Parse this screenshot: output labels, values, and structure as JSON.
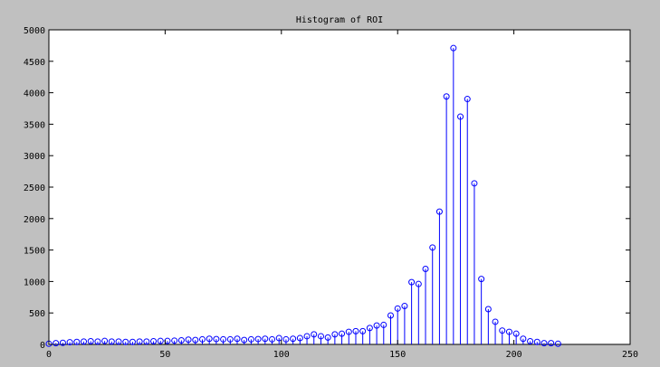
{
  "chart_data": {
    "type": "stem",
    "title": "Histogram of ROI",
    "xlabel": "",
    "ylabel": "",
    "xlim": [
      0,
      250
    ],
    "ylim": [
      0,
      5000
    ],
    "xticks": [
      0,
      50,
      100,
      150,
      200,
      250
    ],
    "yticks": [
      0,
      500,
      1000,
      1500,
      2000,
      2500,
      3000,
      3500,
      4000,
      4500,
      5000
    ],
    "grid": false,
    "colors": {
      "series": "#0000ff",
      "axes_bg": "#ffffff",
      "figure_bg": "#c0c0c0"
    },
    "series": [
      {
        "x": [
          0,
          3,
          6,
          9,
          12,
          15,
          18,
          21,
          24,
          27,
          30,
          33,
          36,
          39,
          42,
          45,
          48,
          51,
          54,
          57,
          60,
          63,
          66,
          69,
          72,
          75,
          78,
          81,
          84,
          87,
          90,
          93,
          96,
          99,
          102,
          105,
          108,
          111,
          114,
          117,
          120,
          123,
          126,
          129,
          132,
          135,
          138,
          141,
          144,
          147,
          150,
          153,
          156,
          159,
          162,
          165,
          168,
          171,
          174,
          177,
          180,
          183,
          186,
          189,
          192,
          195,
          198,
          201,
          204,
          207,
          210,
          213,
          216,
          219
        ],
        "values": [
          10,
          20,
          25,
          35,
          40,
          45,
          50,
          45,
          55,
          45,
          45,
          40,
          40,
          45,
          45,
          50,
          55,
          55,
          60,
          65,
          75,
          70,
          80,
          90,
          85,
          80,
          80,
          90,
          70,
          80,
          85,
          90,
          80,
          100,
          80,
          90,
          100,
          130,
          160,
          130,
          110,
          160,
          170,
          200,
          210,
          210,
          260,
          300,
          310,
          460,
          570,
          610,
          990,
          960,
          1200,
          1540,
          2110,
          3940,
          4710,
          3620,
          3900,
          2560,
          1040,
          560,
          360,
          220,
          200,
          170,
          90,
          50,
          40,
          20,
          20,
          10
        ]
      }
    ]
  }
}
